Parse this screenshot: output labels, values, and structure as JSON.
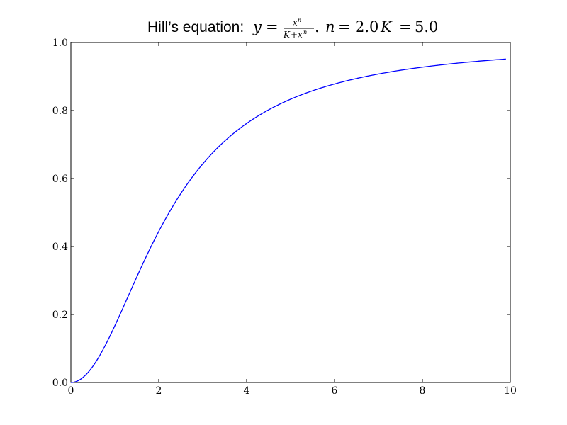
{
  "chart_data": {
    "type": "line",
    "title": {
      "prefix": "Hill’s equation:",
      "y_var": "y",
      "equals": "=",
      "num_base": "x",
      "num_exp": "n",
      "den_k": "K",
      "den_plus": "+",
      "den_base": "x",
      "den_exp": "n",
      "period": ".",
      "n_var": "n",
      "n_equals": "=",
      "n_value": "2.0",
      "k_var": "K",
      "k_equals": "=",
      "k_value": "5.0"
    },
    "parameters": {
      "n": 2.0,
      "K": 5.0
    },
    "xlim": [
      0,
      10
    ],
    "ylim": [
      0,
      1
    ],
    "x_ticks": [
      {
        "value": 0,
        "label": "0"
      },
      {
        "value": 2,
        "label": "2"
      },
      {
        "value": 4,
        "label": "4"
      },
      {
        "value": 6,
        "label": "6"
      },
      {
        "value": 8,
        "label": "8"
      },
      {
        "value": 10,
        "label": "10"
      }
    ],
    "y_ticks": [
      {
        "value": 0,
        "label": "0.0"
      },
      {
        "value": 0.2,
        "label": "0.2"
      },
      {
        "value": 0.4,
        "label": "0.4"
      },
      {
        "value": 0.6,
        "label": "0.6"
      },
      {
        "value": 0.8,
        "label": "0.8"
      },
      {
        "value": 1.0,
        "label": "1.0"
      }
    ],
    "grid": false,
    "series": [
      {
        "x": [
          0,
          0.5,
          1,
          1.5,
          2,
          2.5,
          3,
          3.5,
          4,
          4.5,
          5,
          5.5,
          6,
          6.5,
          7,
          7.5,
          8,
          8.5,
          9,
          9.5,
          9.9
        ],
        "y": [
          0,
          0.0476,
          0.1667,
          0.3103,
          0.4444,
          0.5556,
          0.6429,
          0.7101,
          0.7619,
          0.802,
          0.8333,
          0.8582,
          0.878,
          0.8942,
          0.9074,
          0.9184,
          0.9275,
          0.9353,
          0.9419,
          0.9475,
          0.9515
        ],
        "color": "#0000ff"
      }
    ]
  }
}
